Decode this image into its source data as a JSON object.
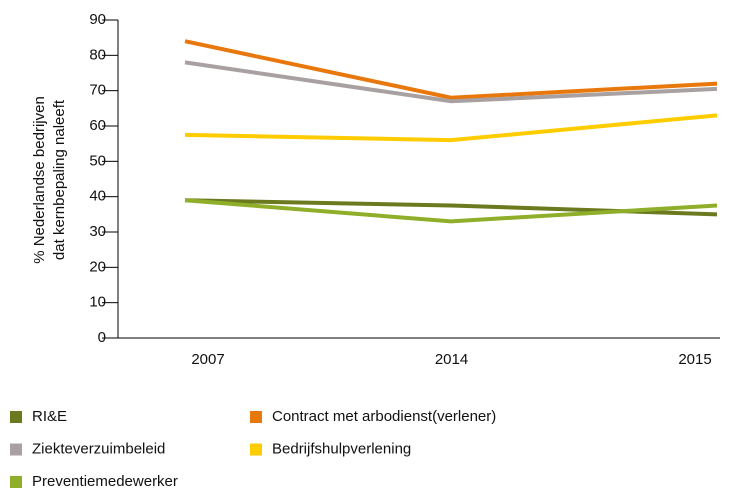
{
  "chart_data": {
    "type": "line",
    "ylabel": [
      "% Nederlandse bedrijven",
      "dat kernbepaling naleeft"
    ],
    "categories": [
      "2007",
      "2014",
      "2015"
    ],
    "series": [
      {
        "name": "RI&E",
        "color": "#6b7a1f",
        "values": [
          39,
          37.5,
          35
        ]
      },
      {
        "name": "Contract met arbodienst(verlener)",
        "color": "#e8780c",
        "values": [
          84,
          68,
          72
        ]
      },
      {
        "name": "Ziekteverzuimbeleid",
        "color": "#a9a1a1",
        "values": [
          78,
          67,
          70.5
        ]
      },
      {
        "name": "Bedrijfshulpverlening",
        "color": "#ffcc00",
        "values": [
          57.5,
          56,
          63
        ]
      },
      {
        "name": "Preventiemedewerker",
        "color": "#8fae2a",
        "values": [
          39,
          33,
          37.5
        ]
      }
    ],
    "ylim": [
      0,
      90
    ],
    "yticks": [
      0,
      10,
      20,
      30,
      40,
      50,
      60,
      70,
      80,
      90
    ],
    "legend": "bottom"
  }
}
